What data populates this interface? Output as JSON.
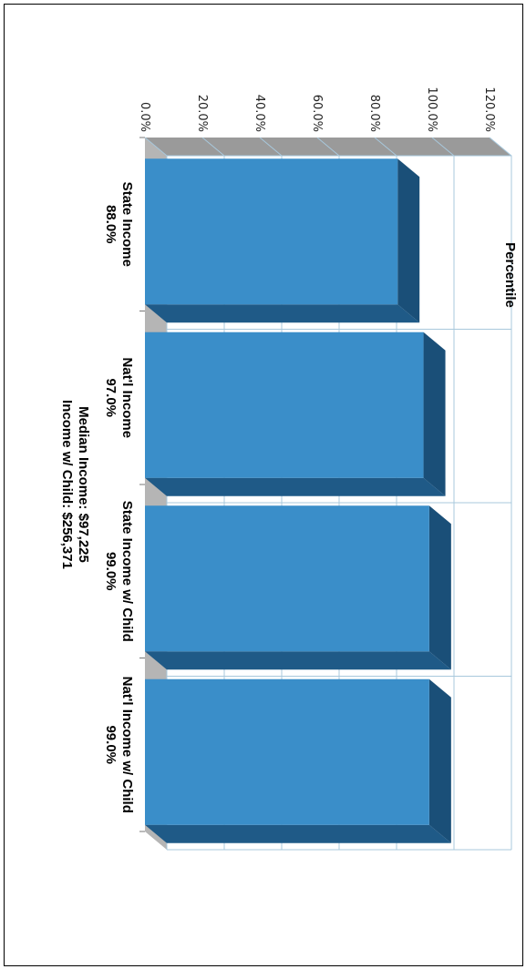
{
  "chart_data": {
    "type": "bar",
    "orientation": "horizontal",
    "style": "3d",
    "title": "Percentile",
    "categories": [
      "State Income",
      "Nat'l Income",
      "State Income w/ Child",
      "Nat'l Income w/ Child"
    ],
    "values": [
      88.0,
      97.0,
      99.0,
      99.0
    ],
    "value_labels": [
      "88.0%",
      "97.0%",
      "99.0%",
      "99.0%"
    ],
    "ticks": [
      "0.0%",
      "20.0%",
      "40.0%",
      "60.0%",
      "80.0%",
      "100.0%",
      "120.0%"
    ],
    "xlim": [
      0,
      120
    ],
    "grid": true,
    "legend": "none",
    "rotated": "90deg clockwise",
    "notes": [
      "Median Income: $97,225",
      "Income w/ Child: $256,371"
    ],
    "colors": {
      "bar_front": "#3a8ec9",
      "bar_side": "#1f5a87",
      "bar_top": "#1a4f78",
      "wall": "#9a9a9a",
      "grid": "#a8c8dc"
    }
  }
}
